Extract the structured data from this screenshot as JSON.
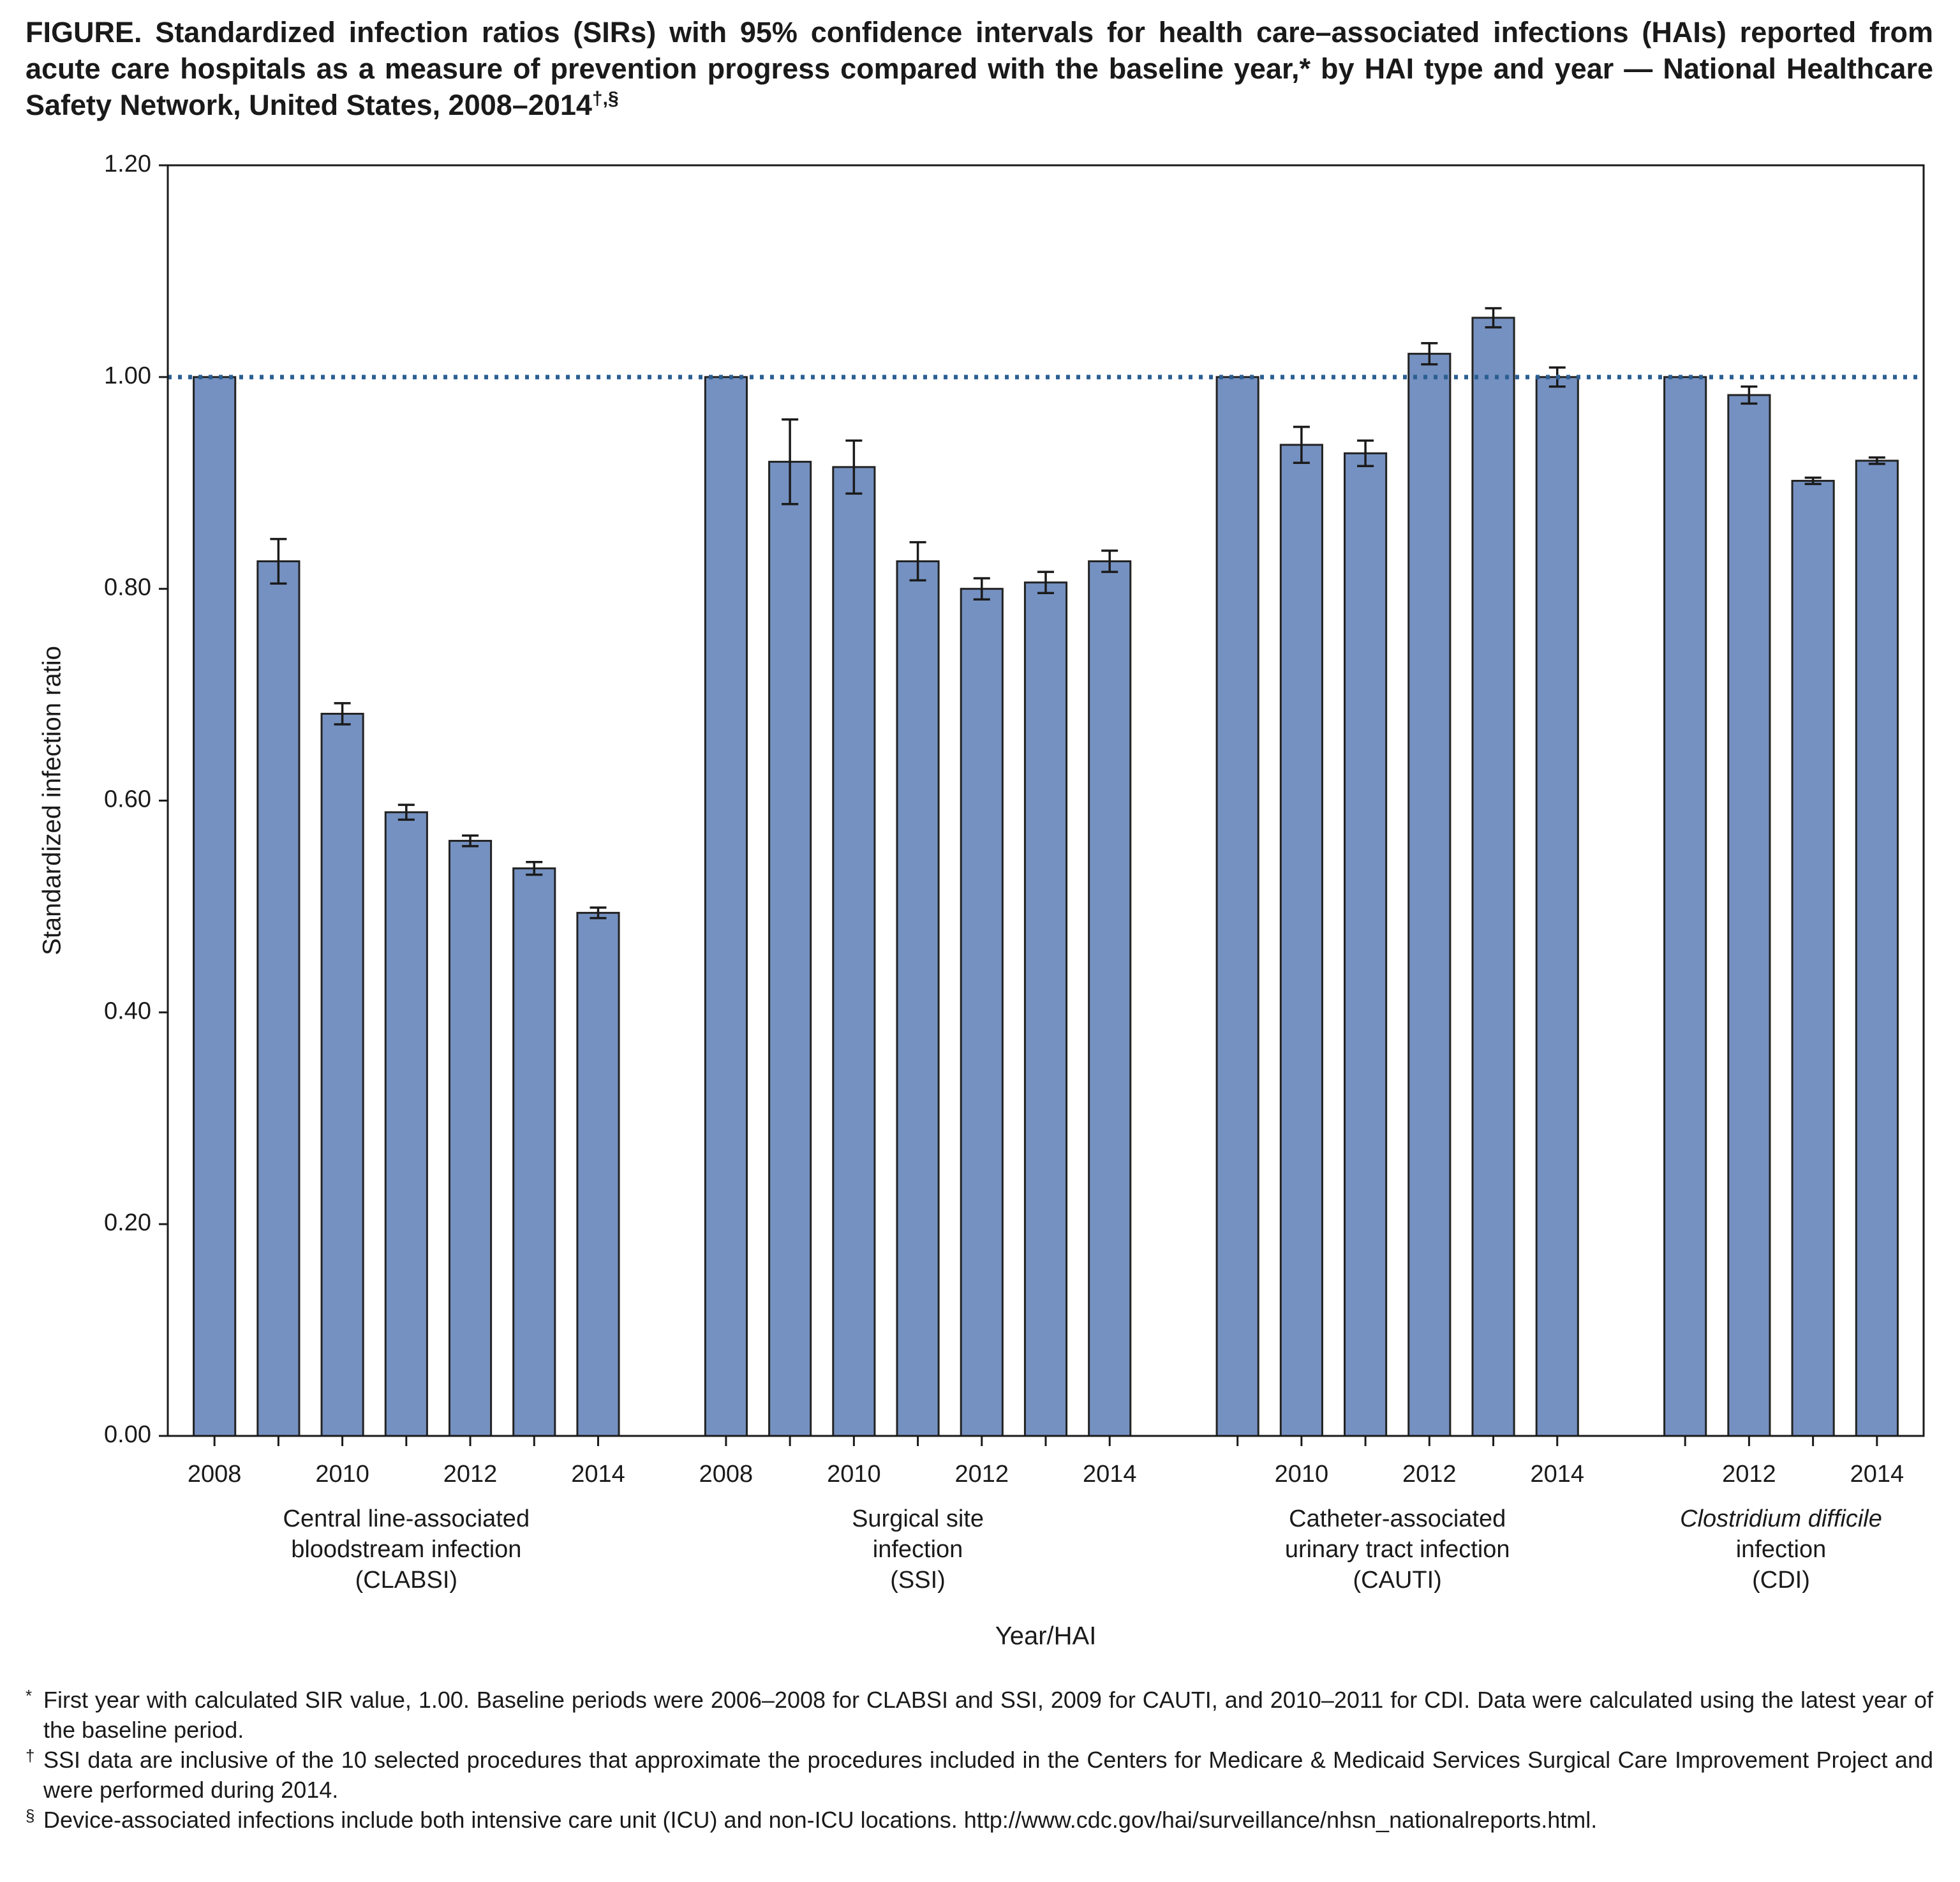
{
  "chart_data": {
    "type": "bar",
    "title": "FIGURE. Standardized infection ratios (SIRs) with 95% confidence intervals for health care–associated infections (HAIs) reported from acute care hospitals as a measure of prevention progress compared with the baseline year,* by HAI type and year — National Healthcare Safety Network, United States, 2008–2014",
    "title_superscript": "†,§",
    "y_label": "Standardized infection ratio",
    "x_label": "Year/HAI",
    "color": "#7591c1",
    "ylim": [
      0,
      1.2
    ],
    "yticks": [
      {
        "value": 0,
        "label": "0.00"
      },
      {
        "value": 0.2,
        "label": "0.20"
      },
      {
        "value": 0.4,
        "label": "0.40"
      },
      {
        "value": 0.6,
        "label": "0.60"
      },
      {
        "value": 0.8,
        "label": "0.80"
      },
      {
        "value": 1,
        "label": "1.00"
      },
      {
        "value": 1.2,
        "label": "1.20"
      }
    ],
    "reference_line": 1,
    "groups": [
      {
        "label": [
          "Central line-associated",
          "bloodstream infection",
          "(CLABSI)"
        ],
        "categories": [
          "2008",
          null,
          "2010",
          null,
          "2012",
          null,
          "2014"
        ],
        "values": [
          1.0,
          0.826,
          0.682,
          0.589,
          0.562,
          0.536,
          0.494
        ],
        "errors": [
          null,
          0.021,
          0.01,
          0.007,
          0.005,
          0.006,
          0.005
        ]
      },
      {
        "label": [
          "Surgical site",
          "infection",
          "(SSI)"
        ],
        "categories": [
          "2008",
          null,
          "2010",
          null,
          "2012",
          null,
          "2014"
        ],
        "values": [
          1.0,
          0.92,
          0.915,
          0.826,
          0.8,
          0.806,
          0.826
        ],
        "errors": [
          null,
          0.04,
          0.025,
          0.018,
          0.01,
          0.01,
          0.01
        ]
      },
      {
        "label": [
          "Catheter-associated",
          "urinary tract infection",
          "(CAUTI)"
        ],
        "categories": [
          null,
          "2010",
          null,
          "2012",
          null,
          "2014"
        ],
        "values": [
          1.0,
          0.936,
          0.928,
          1.022,
          1.056,
          1.0
        ],
        "errors": [
          null,
          0.017,
          0.012,
          0.01,
          0.009,
          0.009
        ]
      },
      {
        "label": [
          "Clostridium difficile",
          "infection",
          "(CDI)"
        ],
        "label_italic_lines": 1,
        "categories": [
          null,
          "2012",
          null,
          "2014"
        ],
        "values": [
          1.0,
          0.983,
          0.902,
          0.921
        ],
        "errors": [
          null,
          0.008,
          0.003,
          0.003
        ]
      }
    ],
    "footnotes": [
      {
        "marker": "*",
        "text": "First year with calculated SIR value, 1.00. Baseline periods were 2006–2008 for CLABSI and SSI, 2009 for CAUTI, and 2010–2011 for CDI. Data were calculated using the latest year of the baseline period."
      },
      {
        "marker": "†",
        "text": "SSI data are inclusive of the 10 selected procedures that approximate the procedures included in the Centers for Medicare & Medicaid Services Surgical Care Improvement Project and were performed during 2014."
      },
      {
        "marker": "§",
        "text": "Device-associated infections include both intensive care unit (ICU) and non-ICU locations. http://www.cdc.gov/hai/surveillance/nhsn_nationalreports.html."
      }
    ]
  }
}
